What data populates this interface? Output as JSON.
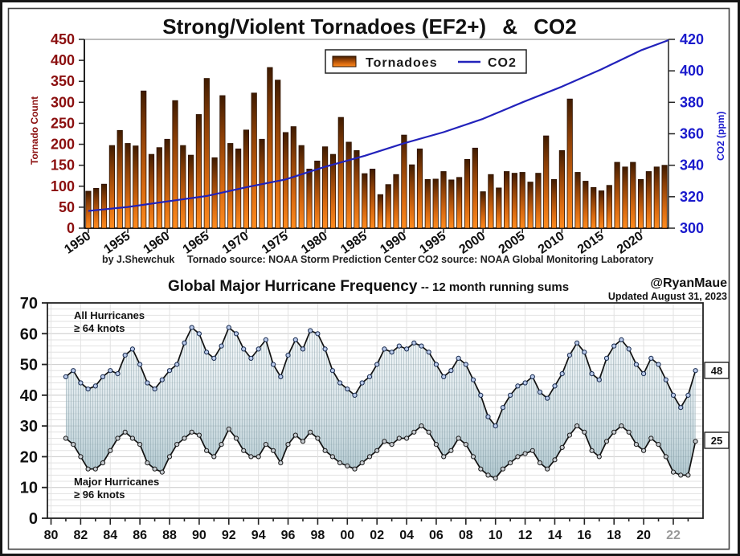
{
  "colors": {
    "bar_top": "#3f1b00",
    "bar_mid": "#8a3e06",
    "bar_bottom": "#ff8c1f",
    "bar_border": "#2e1300",
    "co2_line": "#2222bb",
    "left_axis_text": "#8b0f0f",
    "right_axis_text": "#1a1acc",
    "hurricane_line": "#111111",
    "upper_marker_fill": "#b9c9e9",
    "upper_marker_edge": "#16294d",
    "lower_marker_fill": "#c6cbd0",
    "lower_marker_edge": "#1a1a1a",
    "band_fill_light": "#dbe7ec",
    "band_fill_dark": "#8fb0ba",
    "grid_minor": "#e2e2e2",
    "grid_major": "#c9c9c9",
    "frame": "#161616"
  },
  "chart_data": [
    {
      "type": "bar",
      "title": "Strong/Violent Tornadoes (EF2+)  &  CO2",
      "ylabel_left": "Tornado Count",
      "ylabel_right": "CO2 (ppm)",
      "ylim_left": [
        0,
        450
      ],
      "yticks_left": [
        450,
        400,
        350,
        300,
        250,
        200,
        150,
        100,
        50,
        0
      ],
      "ylim_right": [
        300,
        420
      ],
      "yticks_right": [
        420,
        400,
        380,
        360,
        340,
        320,
        300
      ],
      "x_start_year": 1950,
      "x_tick_years": [
        1950,
        1955,
        1960,
        1965,
        1970,
        1975,
        1980,
        1985,
        1990,
        1995,
        2000,
        2005,
        2010,
        2015,
        2020
      ],
      "legend": {
        "tornadoes": "Tornadoes",
        "co2": "CO2"
      },
      "caption_author": "by J.Shewchuk",
      "caption_tornado_source": "Tornado source: NOAA Storm Prediction Center",
      "caption_co2_source": "CO2 source: NOAA Global Monitoring Laboratory",
      "series": [
        {
          "name": "Tornadoes",
          "kind": "bar",
          "start_year": 1950,
          "values": [
            88,
            95,
            105,
            197,
            233,
            202,
            196,
            327,
            176,
            192,
            212,
            304,
            197,
            174,
            271,
            357,
            168,
            316,
            202,
            189,
            234,
            322,
            212,
            383,
            353,
            228,
            242,
            197,
            141,
            160,
            194,
            176,
            264,
            205,
            185,
            130,
            141,
            80,
            104,
            128,
            222,
            151,
            189,
            116,
            117,
            135,
            115,
            121,
            164,
            191,
            87,
            128,
            96,
            135,
            131,
            133,
            110,
            131,
            220,
            116,
            185,
            308,
            133,
            112,
            97,
            89,
            102,
            157,
            146,
            157,
            116,
            135,
            146,
            150
          ]
        },
        {
          "name": "CO2",
          "kind": "line",
          "axis": "right",
          "points": [
            [
              1950,
              311
            ],
            [
              1955,
              313.5
            ],
            [
              1960,
              317
            ],
            [
              1965,
              320.5
            ],
            [
              1970,
              326
            ],
            [
              1975,
              331
            ],
            [
              1980,
              339
            ],
            [
              1985,
              346
            ],
            [
              1990,
              354
            ],
            [
              1995,
              361
            ],
            [
              2000,
              369.5
            ],
            [
              2005,
              380
            ],
            [
              2010,
              390
            ],
            [
              2015,
              401
            ],
            [
              2020,
              413
            ],
            [
              2023.5,
              419.5
            ]
          ]
        }
      ]
    },
    {
      "type": "line",
      "title": "Global Major Hurricane Frequency",
      "subtitle": " -- 12 month running sums",
      "credit": "@RyanMaue",
      "updated": "Updated August 31, 2023",
      "ylim": [
        0,
        70
      ],
      "yticks": [
        0,
        10,
        20,
        30,
        40,
        50,
        60,
        70
      ],
      "x_start": 1981.0,
      "x_step": 0.5,
      "x_tick_start_year": 1980,
      "x_tick_labels": [
        "80",
        "82",
        "84",
        "86",
        "88",
        "90",
        "92",
        "94",
        "96",
        "98",
        "00",
        "02",
        "04",
        "06",
        "08",
        "10",
        "12",
        "14",
        "16",
        "18",
        "20",
        "22"
      ],
      "series": [
        {
          "label": "All Hurricanes",
          "threshold": "≥ 64 knots",
          "end_label": "48",
          "values": [
            46,
            48,
            44,
            42,
            43,
            46,
            48,
            47,
            53,
            55,
            50,
            44,
            42,
            45,
            48,
            50,
            57,
            62,
            60,
            54,
            52,
            56,
            62,
            60,
            55,
            52,
            55,
            58,
            50,
            46,
            53,
            58,
            55,
            61,
            60,
            55,
            48,
            44,
            42,
            40,
            44,
            46,
            50,
            55,
            54,
            56,
            55,
            57,
            56,
            54,
            50,
            46,
            48,
            52,
            50,
            45,
            40,
            33,
            30,
            36,
            40,
            43,
            44,
            46,
            41,
            39,
            43,
            47,
            53,
            57,
            54,
            47,
            45,
            52,
            56,
            58,
            55,
            50,
            47,
            52,
            50,
            45,
            40,
            36,
            40,
            48
          ]
        },
        {
          "label": "Major Hurricanes",
          "threshold": "≥ 96 knots",
          "end_label": "25",
          "values": [
            26,
            24,
            20,
            16,
            16,
            18,
            22,
            26,
            28,
            26,
            24,
            18,
            16,
            15,
            20,
            24,
            26,
            28,
            27,
            22,
            20,
            24,
            29,
            26,
            22,
            20,
            20,
            24,
            22,
            18,
            24,
            27,
            25,
            28,
            26,
            22,
            20,
            18,
            17,
            16,
            18,
            20,
            22,
            25,
            24,
            26,
            26,
            28,
            30,
            28,
            24,
            20,
            22,
            26,
            24,
            20,
            16,
            14,
            13,
            16,
            18,
            20,
            21,
            22,
            18,
            16,
            19,
            23,
            27,
            30,
            28,
            22,
            20,
            25,
            28,
            30,
            28,
            24,
            22,
            26,
            24,
            20,
            15,
            14,
            14,
            25
          ]
        }
      ]
    }
  ]
}
